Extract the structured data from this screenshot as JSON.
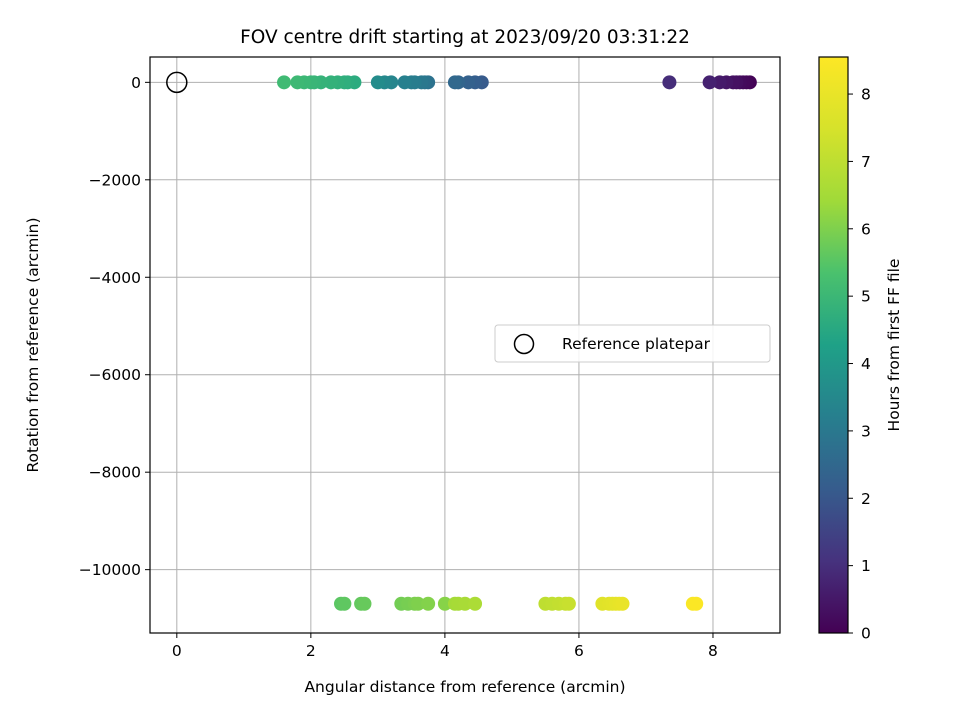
{
  "chart_data": {
    "type": "scatter",
    "title": "FOV centre drift starting at 2023/09/20 03:31:22",
    "xlabel": "Angular distance from reference (arcmin)",
    "ylabel": "Rotation from reference (arcmin)",
    "xlim": [
      -0.4,
      9.0
    ],
    "ylim": [
      -11300,
      520
    ],
    "xticks": [
      0,
      2,
      4,
      6,
      8
    ],
    "xtick_labels": [
      "0",
      "2",
      "4",
      "6",
      "8"
    ],
    "yticks": [
      0,
      -2000,
      -4000,
      -6000,
      -8000,
      -10000
    ],
    "ytick_labels": [
      "0",
      "−2000",
      "−4000",
      "−6000",
      "−8000",
      "−10000"
    ],
    "grid": true,
    "legend": {
      "location": "center-right",
      "entries": [
        "Reference platepar"
      ]
    },
    "colorbar": {
      "label": "Hours from first FF file",
      "range": [
        0,
        8.55
      ],
      "ticks": [
        0,
        1,
        2,
        3,
        4,
        5,
        6,
        7,
        8
      ],
      "tick_labels": [
        "0",
        "1",
        "2",
        "3",
        "4",
        "5",
        "6",
        "7",
        "8"
      ],
      "colormap": "viridis"
    },
    "reference_point": {
      "name": "Reference platepar",
      "x": 0,
      "y": 0
    },
    "series": [
      {
        "x": [
          8.55,
          8.5,
          8.45,
          8.4,
          8.35,
          8.3,
          8.2,
          8.1,
          7.95,
          7.35,
          4.55,
          4.45,
          4.35,
          4.2,
          4.15,
          3.75,
          3.7,
          3.65,
          3.55,
          3.5,
          3.4,
          3.2,
          3.1,
          3.0,
          2.65,
          2.55,
          2.5,
          2.4,
          2.3,
          2.15,
          2.05,
          2.0,
          1.9,
          1.8,
          1.6,
          2.45,
          2.5,
          2.75,
          2.8,
          3.35,
          3.45,
          3.55,
          3.6,
          3.75,
          4.0,
          4.15,
          4.2,
          4.3,
          4.45,
          5.5,
          5.6,
          5.7,
          5.8,
          5.85,
          6.35,
          6.45,
          6.5,
          6.55,
          6.6,
          6.65,
          7.7,
          7.75
        ],
        "y": [
          0,
          0,
          0,
          0,
          0,
          0,
          0,
          0,
          0,
          0,
          0,
          0,
          0,
          0,
          0,
          0,
          0,
          0,
          0,
          0,
          0,
          0,
          0,
          0,
          0,
          0,
          0,
          0,
          0,
          0,
          0,
          0,
          0,
          0,
          0,
          -10700,
          -10700,
          -10700,
          -10700,
          -10700,
          -10700,
          -10700,
          -10700,
          -10700,
          -10700,
          -10700,
          -10700,
          -10700,
          -10700,
          -10700,
          -10700,
          -10700,
          -10700,
          -10700,
          -10700,
          -10700,
          -10700,
          -10700,
          -10700,
          -10700,
          -10700,
          -10700
        ],
        "hours": [
          0.05,
          0.1,
          0.15,
          0.2,
          0.3,
          0.35,
          0.45,
          0.55,
          0.7,
          0.95,
          2.1,
          2.2,
          2.3,
          2.4,
          2.5,
          2.8,
          2.9,
          3.0,
          3.1,
          3.15,
          3.25,
          3.4,
          3.5,
          3.6,
          4.6,
          4.65,
          4.7,
          4.75,
          4.8,
          4.85,
          4.9,
          4.95,
          5.0,
          5.05,
          5.1,
          5.55,
          5.6,
          5.65,
          5.7,
          5.85,
          5.9,
          5.95,
          6.0,
          6.05,
          6.1,
          6.5,
          6.55,
          6.6,
          6.65,
          7.0,
          7.05,
          7.1,
          7.15,
          7.2,
          7.75,
          7.8,
          7.85,
          7.9,
          7.95,
          8.0,
          8.45,
          8.5
        ]
      }
    ]
  }
}
